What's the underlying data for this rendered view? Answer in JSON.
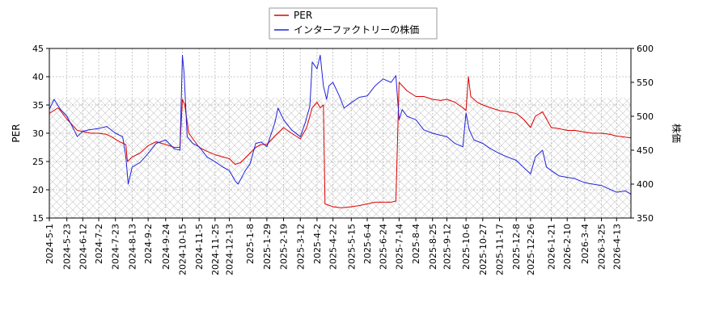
{
  "chart_data": {
    "type": "line",
    "legend": {
      "placement": "top-center",
      "entries": [
        {
          "label": "PER",
          "color": "#dd0000"
        },
        {
          "label": "インターファクトリーの株価",
          "color": "#2222dd"
        }
      ]
    },
    "y_left": {
      "label": "PER",
      "min": 15,
      "max": 45,
      "ticks": [
        "15",
        "20",
        "25",
        "30",
        "35",
        "40",
        "45"
      ]
    },
    "y_right": {
      "label": "株価",
      "min": 350,
      "max": 600,
      "ticks": [
        "350",
        "400",
        "450",
        "500",
        "550",
        "600"
      ]
    },
    "x_range": [
      "2024-05-01",
      "2026-05-01"
    ],
    "x_ticks": [
      "2024-5-1",
      "2024-5-23",
      "2024-6-12",
      "2024-7-2",
      "2024-7-23",
      "2024-8-13",
      "2024-9-2",
      "2024-9-24",
      "2024-10-15",
      "2024-11-5",
      "2024-11-25",
      "2024-12-13",
      "2025-1-8",
      "2025-1-29",
      "2025-2-19",
      "2025-3-12",
      "2025-4-2",
      "2025-4-22",
      "2025-5-15",
      "2025-6-4",
      "2025-6-24",
      "2025-7-14",
      "2025-8-4",
      "2025-8-25",
      "2025-9-12",
      "2025-10-6",
      "2025-10-27",
      "2025-11-17",
      "2025-12-8",
      "2025-12-26",
      "2026-1-21",
      "2026-2-10",
      "2026-3-4",
      "2026-3-25",
      "2026-4-13"
    ],
    "grid": true,
    "series": [
      {
        "name": "PER",
        "axis": "left",
        "color": "#dd0000",
        "points": [
          [
            "2024-05-01",
            33.5
          ],
          [
            "2024-05-12",
            34.5
          ],
          [
            "2024-05-23",
            32.5
          ],
          [
            "2024-06-05",
            30.5
          ],
          [
            "2024-06-12",
            30.3
          ],
          [
            "2024-06-22",
            30.0
          ],
          [
            "2024-07-02",
            30.0
          ],
          [
            "2024-07-12",
            29.8
          ],
          [
            "2024-07-20",
            29.2
          ],
          [
            "2024-07-28",
            28.5
          ],
          [
            "2024-08-05",
            28.0
          ],
          [
            "2024-08-07",
            25.0
          ],
          [
            "2024-08-13",
            25.8
          ],
          [
            "2024-08-23",
            26.5
          ],
          [
            "2024-09-02",
            27.8
          ],
          [
            "2024-09-12",
            28.5
          ],
          [
            "2024-09-24",
            28.0
          ],
          [
            "2024-10-05",
            27.5
          ],
          [
            "2024-10-12",
            27.5
          ],
          [
            "2024-10-15",
            36.0
          ],
          [
            "2024-10-18",
            35.0
          ],
          [
            "2024-10-23",
            30.0
          ],
          [
            "2024-11-05",
            27.5
          ],
          [
            "2024-11-15",
            26.8
          ],
          [
            "2024-11-25",
            26.2
          ],
          [
            "2024-12-05",
            25.8
          ],
          [
            "2024-12-13",
            25.5
          ],
          [
            "2024-12-20",
            24.5
          ],
          [
            "2024-12-27",
            24.8
          ],
          [
            "2025-01-08",
            26.5
          ],
          [
            "2025-01-15",
            27.5
          ],
          [
            "2025-01-22",
            28.0
          ],
          [
            "2025-01-29",
            28.0
          ],
          [
            "2025-02-08",
            29.5
          ],
          [
            "2025-02-19",
            31.0
          ],
          [
            "2025-03-01",
            30.0
          ],
          [
            "2025-03-12",
            29.0
          ],
          [
            "2025-03-20",
            31.0
          ],
          [
            "2025-03-27",
            34.5
          ],
          [
            "2025-04-02",
            35.5
          ],
          [
            "2025-04-06",
            34.5
          ],
          [
            "2025-04-10",
            35.0
          ],
          [
            "2025-04-12",
            17.5
          ],
          [
            "2025-04-22",
            17.0
          ],
          [
            "2025-05-03",
            16.8
          ],
          [
            "2025-05-15",
            17.0
          ],
          [
            "2025-05-25",
            17.2
          ],
          [
            "2025-06-04",
            17.5
          ],
          [
            "2025-06-14",
            17.8
          ],
          [
            "2025-06-24",
            17.8
          ],
          [
            "2025-07-04",
            17.8
          ],
          [
            "2025-07-10",
            18.0
          ],
          [
            "2025-07-14",
            39.0
          ],
          [
            "2025-07-24",
            37.5
          ],
          [
            "2025-08-04",
            36.5
          ],
          [
            "2025-08-14",
            36.5
          ],
          [
            "2025-08-25",
            36.0
          ],
          [
            "2025-09-04",
            35.8
          ],
          [
            "2025-09-12",
            36.0
          ],
          [
            "2025-09-22",
            35.5
          ],
          [
            "2025-10-02",
            34.5
          ],
          [
            "2025-10-06",
            34.0
          ],
          [
            "2025-10-09",
            40.0
          ],
          [
            "2025-10-12",
            36.5
          ],
          [
            "2025-10-20",
            35.5
          ],
          [
            "2025-10-27",
            35.0
          ],
          [
            "2025-11-06",
            34.5
          ],
          [
            "2025-11-17",
            34.0
          ],
          [
            "2025-11-27",
            33.8
          ],
          [
            "2025-12-08",
            33.5
          ],
          [
            "2025-12-17",
            32.5
          ],
          [
            "2025-12-26",
            31.0
          ],
          [
            "2026-01-01",
            33.0
          ],
          [
            "2026-01-10",
            33.8
          ],
          [
            "2026-01-21",
            31.0
          ],
          [
            "2026-01-31",
            30.8
          ],
          [
            "2026-02-10",
            30.5
          ],
          [
            "2026-02-20",
            30.5
          ],
          [
            "2026-03-04",
            30.2
          ],
          [
            "2026-03-14",
            30.0
          ],
          [
            "2026-03-25",
            30.0
          ],
          [
            "2026-04-05",
            29.8
          ],
          [
            "2026-04-13",
            29.5
          ],
          [
            "2026-04-24",
            29.3
          ],
          [
            "2026-05-01",
            29.2
          ]
        ]
      },
      {
        "name": "インターファクトリーの株価",
        "axis": "right",
        "color": "#2222dd",
        "points": [
          [
            "2024-05-01",
            510
          ],
          [
            "2024-05-07",
            525
          ],
          [
            "2024-05-15",
            510
          ],
          [
            "2024-05-23",
            500
          ],
          [
            "2024-06-01",
            480
          ],
          [
            "2024-06-05",
            470
          ],
          [
            "2024-06-12",
            478
          ],
          [
            "2024-06-20",
            480
          ],
          [
            "2024-07-02",
            482
          ],
          [
            "2024-07-12",
            485
          ],
          [
            "2024-07-23",
            475
          ],
          [
            "2024-08-01",
            470
          ],
          [
            "2024-08-05",
            440
          ],
          [
            "2024-08-08",
            400
          ],
          [
            "2024-08-13",
            425
          ],
          [
            "2024-08-23",
            432
          ],
          [
            "2024-09-02",
            445
          ],
          [
            "2024-09-12",
            460
          ],
          [
            "2024-09-24",
            465
          ],
          [
            "2024-10-05",
            452
          ],
          [
            "2024-10-12",
            450
          ],
          [
            "2024-10-15",
            590
          ],
          [
            "2024-10-17",
            565
          ],
          [
            "2024-10-21",
            470
          ],
          [
            "2024-10-28",
            460
          ],
          [
            "2024-11-05",
            455
          ],
          [
            "2024-11-15",
            440
          ],
          [
            "2024-11-25",
            433
          ],
          [
            "2024-12-05",
            425
          ],
          [
            "2024-12-13",
            420
          ],
          [
            "2024-12-20",
            405
          ],
          [
            "2024-12-24",
            400
          ],
          [
            "2025-01-02",
            420
          ],
          [
            "2025-01-08",
            430
          ],
          [
            "2025-01-15",
            460
          ],
          [
            "2025-01-22",
            462
          ],
          [
            "2025-01-29",
            455
          ],
          [
            "2025-02-08",
            490
          ],
          [
            "2025-02-12",
            512
          ],
          [
            "2025-02-19",
            495
          ],
          [
            "2025-03-01",
            480
          ],
          [
            "2025-03-12",
            470
          ],
          [
            "2025-03-18",
            490
          ],
          [
            "2025-03-24",
            515
          ],
          [
            "2025-03-27",
            580
          ],
          [
            "2025-04-02",
            570
          ],
          [
            "2025-04-06",
            590
          ],
          [
            "2025-04-10",
            545
          ],
          [
            "2025-04-14",
            525
          ],
          [
            "2025-04-17",
            545
          ],
          [
            "2025-04-22",
            550
          ],
          [
            "2025-04-30",
            530
          ],
          [
            "2025-05-06",
            512
          ],
          [
            "2025-05-15",
            520
          ],
          [
            "2025-05-25",
            528
          ],
          [
            "2025-06-04",
            530
          ],
          [
            "2025-06-14",
            545
          ],
          [
            "2025-06-24",
            555
          ],
          [
            "2025-07-04",
            550
          ],
          [
            "2025-07-10",
            560
          ],
          [
            "2025-07-14",
            495
          ],
          [
            "2025-07-18",
            510
          ],
          [
            "2025-07-24",
            500
          ],
          [
            "2025-08-04",
            495
          ],
          [
            "2025-08-14",
            480
          ],
          [
            "2025-08-25",
            475
          ],
          [
            "2025-09-04",
            472
          ],
          [
            "2025-09-12",
            470
          ],
          [
            "2025-09-22",
            460
          ],
          [
            "2025-10-02",
            455
          ],
          [
            "2025-10-06",
            505
          ],
          [
            "2025-10-10",
            480
          ],
          [
            "2025-10-16",
            465
          ],
          [
            "2025-10-27",
            460
          ],
          [
            "2025-11-06",
            452
          ],
          [
            "2025-11-17",
            445
          ],
          [
            "2025-11-27",
            440
          ],
          [
            "2025-12-08",
            435
          ],
          [
            "2025-12-17",
            425
          ],
          [
            "2025-12-26",
            415
          ],
          [
            "2026-01-01",
            440
          ],
          [
            "2026-01-10",
            450
          ],
          [
            "2026-01-15",
            425
          ],
          [
            "2026-01-21",
            420
          ],
          [
            "2026-01-31",
            412
          ],
          [
            "2026-02-10",
            410
          ],
          [
            "2026-02-20",
            408
          ],
          [
            "2026-03-04",
            402
          ],
          [
            "2026-03-14",
            400
          ],
          [
            "2026-03-25",
            398
          ],
          [
            "2026-04-05",
            392
          ],
          [
            "2026-04-13",
            388
          ],
          [
            "2026-04-24",
            390
          ],
          [
            "2026-05-01",
            385
          ]
        ]
      }
    ]
  }
}
